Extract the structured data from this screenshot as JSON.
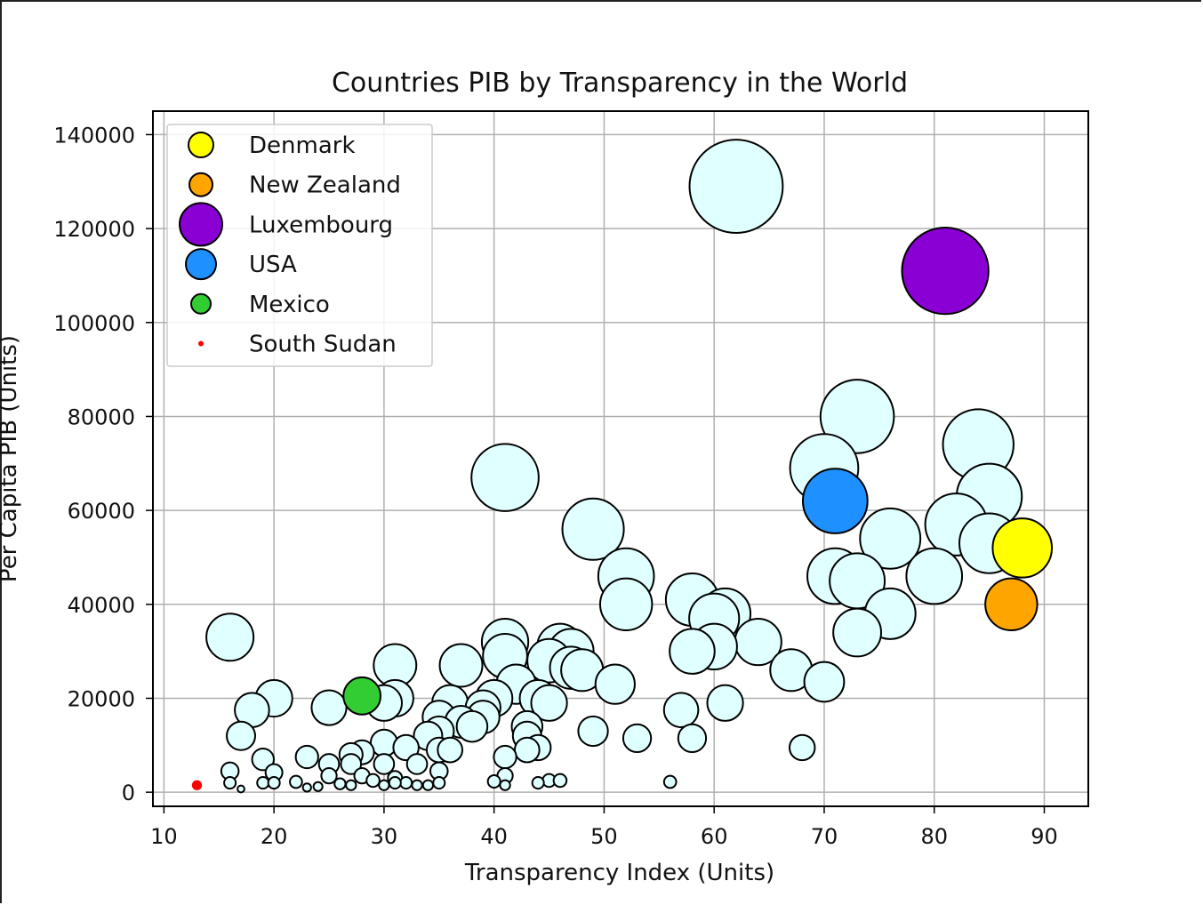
{
  "chart_data": {
    "type": "scatter",
    "title": "Countries PIB by Transparency in the World",
    "xlabel": "Transparency Index (Units)",
    "ylabel": "Per Capita PIB (Units)",
    "xlim": [
      9,
      94
    ],
    "ylim": [
      -3000,
      145000
    ],
    "xticks": [
      10,
      20,
      30,
      40,
      50,
      60,
      70,
      80,
      90
    ],
    "yticks": [
      0,
      20000,
      40000,
      60000,
      80000,
      100000,
      120000,
      140000
    ],
    "grid": true,
    "legend_position": "top-left",
    "default_color": "#e0ffff",
    "highlights": [
      {
        "name": "Denmark",
        "x": 88,
        "y": 52000,
        "color": "#ffff00"
      },
      {
        "name": "New Zealand",
        "x": 87,
        "y": 40000,
        "color": "#ffa500"
      },
      {
        "name": "Luxembourg",
        "x": 81,
        "y": 111000,
        "color": "#8a00d4"
      },
      {
        "name": "USA",
        "x": 71,
        "y": 62000,
        "color": "#1e90ff"
      },
      {
        "name": "Mexico",
        "x": 28,
        "y": 20500,
        "color": "#32cd32"
      },
      {
        "name": "South Sudan",
        "x": 13,
        "y": 1500,
        "color": "#ff0000"
      }
    ],
    "points": [
      [
        62,
        129000
      ],
      [
        73,
        80000
      ],
      [
        84,
        74000
      ],
      [
        70,
        69000
      ],
      [
        85,
        63000
      ],
      [
        41,
        67000
      ],
      [
        49,
        56000
      ],
      [
        76,
        54000
      ],
      [
        82,
        57000
      ],
      [
        85,
        53000
      ],
      [
        80,
        46000
      ],
      [
        71,
        46000
      ],
      [
        73,
        45000
      ],
      [
        52,
        46000
      ],
      [
        52,
        40000
      ],
      [
        76,
        38000
      ],
      [
        73,
        34000
      ],
      [
        58,
        41000
      ],
      [
        60,
        37000
      ],
      [
        61,
        38000
      ],
      [
        58,
        30000
      ],
      [
        60,
        31000
      ],
      [
        64,
        32000
      ],
      [
        67,
        26000
      ],
      [
        70,
        23500
      ],
      [
        16,
        33000
      ],
      [
        41,
        32000
      ],
      [
        41,
        29000
      ],
      [
        46,
        31000
      ],
      [
        47,
        30000
      ],
      [
        45,
        28000
      ],
      [
        48,
        26000
      ],
      [
        47,
        26500
      ],
      [
        31,
        27000
      ],
      [
        37,
        27000
      ],
      [
        42,
        23000
      ],
      [
        44,
        20000
      ],
      [
        45,
        19000
      ],
      [
        51,
        23000
      ],
      [
        49,
        13000
      ],
      [
        53,
        11500
      ],
      [
        57,
        17500
      ],
      [
        58,
        11500
      ],
      [
        61,
        19000
      ],
      [
        68,
        9500
      ],
      [
        20,
        20000
      ],
      [
        18,
        17500
      ],
      [
        17,
        12000
      ],
      [
        25,
        18000
      ],
      [
        30,
        19000
      ],
      [
        31,
        20000
      ],
      [
        35,
        16000
      ],
      [
        36,
        19000
      ],
      [
        37,
        15000
      ],
      [
        38,
        14000
      ],
      [
        39,
        18000
      ],
      [
        40,
        20000
      ],
      [
        39,
        16000
      ],
      [
        43,
        14000
      ],
      [
        43,
        12000
      ],
      [
        43,
        9000
      ],
      [
        44,
        9500
      ],
      [
        41,
        7500
      ],
      [
        35,
        13000
      ],
      [
        34,
        12000
      ],
      [
        35,
        9000
      ],
      [
        36,
        9000
      ],
      [
        32,
        9500
      ],
      [
        30,
        10500
      ],
      [
        28,
        8500
      ],
      [
        27,
        8000
      ],
      [
        23,
        7500
      ],
      [
        19,
        7000
      ],
      [
        25,
        6000
      ],
      [
        27,
        6000
      ],
      [
        30,
        6000
      ],
      [
        33,
        6000
      ],
      [
        16,
        4500
      ],
      [
        20,
        4200
      ],
      [
        25,
        3500
      ],
      [
        28,
        3500
      ],
      [
        35,
        4500
      ],
      [
        41,
        3500
      ],
      [
        31,
        3000
      ],
      [
        32,
        2000
      ],
      [
        30,
        1500
      ],
      [
        29,
        2500
      ],
      [
        26,
        1800
      ],
      [
        27,
        1500
      ],
      [
        24,
        1200
      ],
      [
        23,
        1000
      ],
      [
        22,
        2200
      ],
      [
        19,
        2000
      ],
      [
        20,
        2000
      ],
      [
        16,
        2000
      ],
      [
        17,
        700
      ],
      [
        31,
        2000
      ],
      [
        33,
        1500
      ],
      [
        34,
        1500
      ],
      [
        35,
        2000
      ],
      [
        40,
        2300
      ],
      [
        41,
        1500
      ],
      [
        44,
        2000
      ],
      [
        45,
        2500
      ],
      [
        46,
        2500
      ],
      [
        56,
        2200
      ]
    ]
  }
}
